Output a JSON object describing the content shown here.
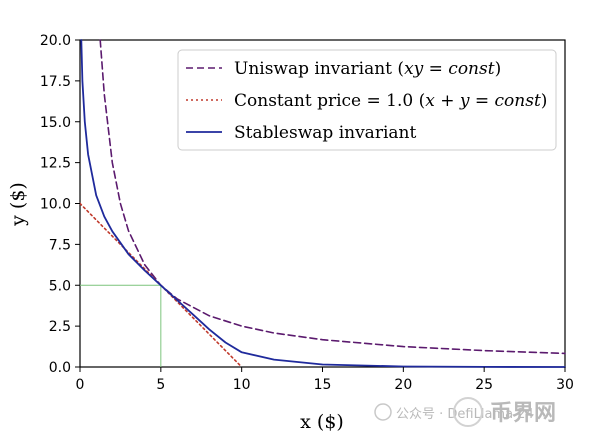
{
  "chart_data": {
    "type": "line",
    "xlabel": "x ($)",
    "ylabel": "y ($)",
    "xlim": [
      0,
      30
    ],
    "ylim": [
      0,
      20
    ],
    "xticks": [
      0,
      5,
      10,
      15,
      20,
      25,
      30
    ],
    "yticks": [
      0.0,
      2.5,
      5.0,
      7.5,
      10.0,
      12.5,
      15.0,
      17.5,
      20.0
    ],
    "grid": false,
    "legend_position": "top-right",
    "series": [
      {
        "name": "Uniswap invariant (xy = const)",
        "style": "dashed",
        "color": "#5b1a6e",
        "x": [
          1.25,
          1.5,
          2,
          2.5,
          3,
          4,
          5,
          6,
          8,
          10,
          12,
          15,
          20,
          25,
          30
        ],
        "y": [
          20,
          16.67,
          12.5,
          10,
          8.33,
          6.25,
          5,
          4.17,
          3.13,
          2.5,
          2.08,
          1.67,
          1.25,
          1.0,
          0.83
        ]
      },
      {
        "name": "Constant price = 1.0 (x + y = const)",
        "style": "dotted",
        "color": "#c0392b",
        "x": [
          0,
          10
        ],
        "y": [
          10,
          0
        ]
      },
      {
        "name": "Stableswap invariant",
        "style": "solid",
        "color": "#1f2a9c",
        "x": [
          0.08,
          0.15,
          0.3,
          0.5,
          1,
          1.5,
          2,
          3,
          4,
          5,
          6,
          7,
          8,
          9,
          10,
          12,
          15,
          20,
          25,
          30
        ],
        "y": [
          20,
          17.5,
          15,
          13,
          10.5,
          9.2,
          8.3,
          6.9,
          5.9,
          5.0,
          4.1,
          3.2,
          2.3,
          1.5,
          0.9,
          0.45,
          0.15,
          0.03,
          0.008,
          0.002
        ]
      }
    ],
    "annotations": [
      {
        "type": "guide",
        "color": "#7cc47c",
        "x": 5,
        "y": 5
      }
    ]
  },
  "legend": {
    "items": [
      {
        "prefix": "Uniswap invariant (",
        "math": "xy = const",
        "suffix": ")"
      },
      {
        "prefix": "Constant price = 1.0 (",
        "math": "x + y = const",
        "suffix": ")"
      },
      {
        "prefix": "Stableswap invariant",
        "math": "",
        "suffix": ""
      }
    ]
  },
  "watermark": {
    "left": "公众号 · DefiLlama 24",
    "right": "币界网"
  }
}
